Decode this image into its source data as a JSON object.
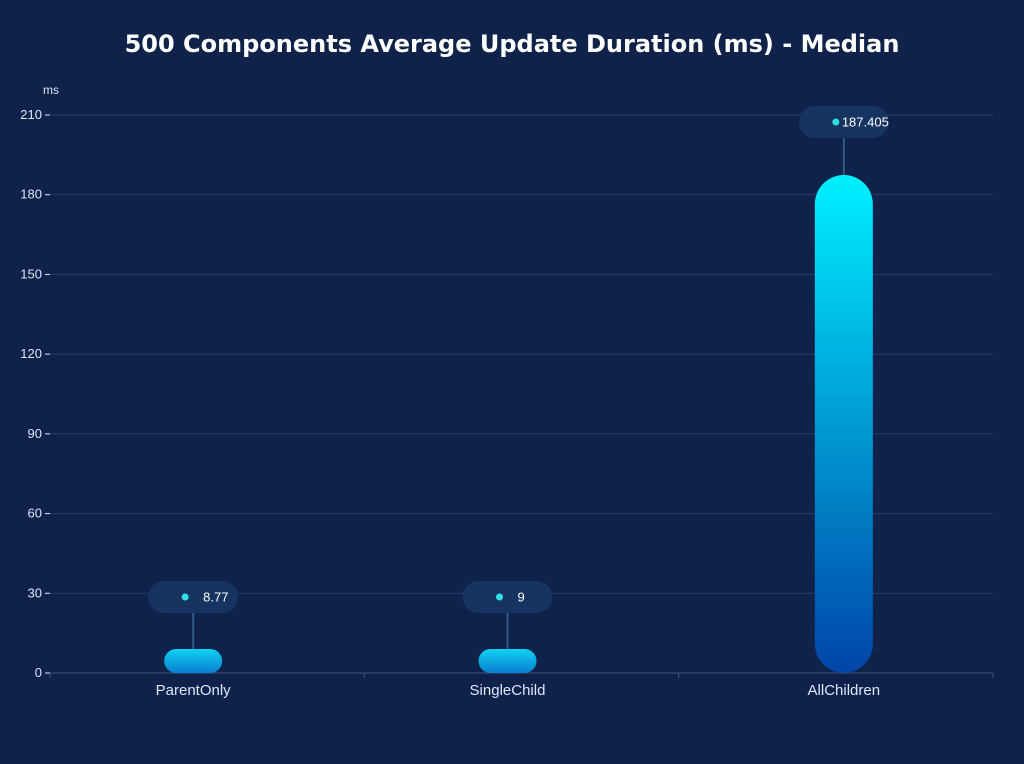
{
  "chart_data": {
    "type": "bar",
    "title": "500 Components Average Update Duration (ms) - Median",
    "ylabel": "ms",
    "xlabel": "",
    "categories": [
      "ParentOnly",
      "SingleChild",
      "AllChildren"
    ],
    "values": [
      8.77,
      9,
      187.405
    ],
    "value_labels": [
      "8.77",
      "9",
      "187.405"
    ],
    "ylim": [
      0,
      210
    ],
    "yticks": [
      0,
      30,
      60,
      90,
      120,
      150,
      180,
      210
    ],
    "ytick_labels": [
      "0",
      "30",
      "60",
      "90",
      "120",
      "150",
      "180",
      "210"
    ],
    "grid": true,
    "legend": "none"
  },
  "colors": {
    "background": "#0f2249",
    "grid": "#2a3d66",
    "axis_text": "#dce6ff",
    "bar_top": "#00f0ff",
    "bar_bottom": "#0045a8",
    "callout_bg": "#17335f",
    "callout_dot": "#2fe0e8"
  }
}
